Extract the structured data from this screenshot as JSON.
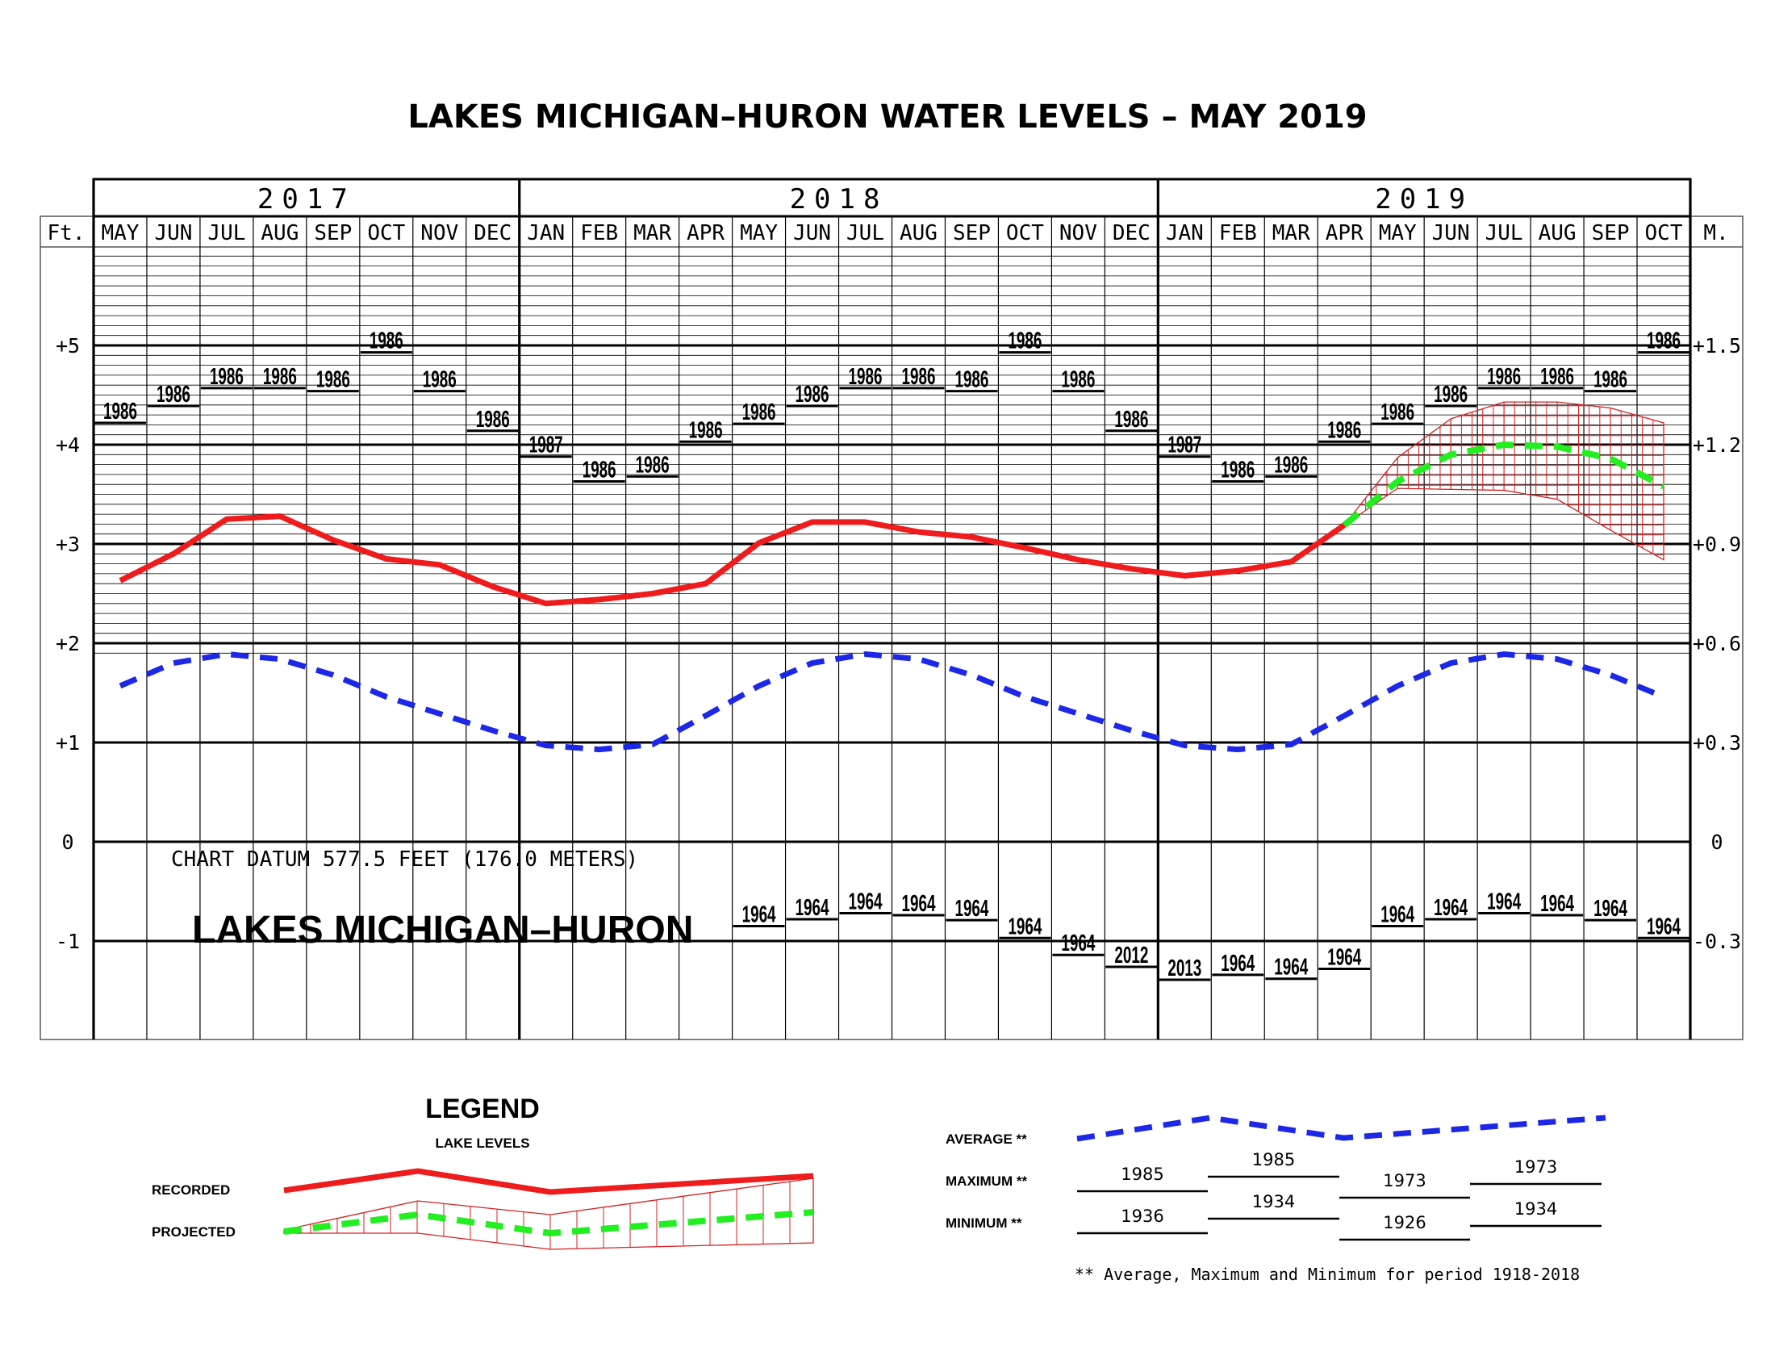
{
  "title": "LAKES MICHIGAN–HURON  WATER  LEVELS  –  MAY  2019",
  "years": [
    {
      "label": "2017",
      "first": 0,
      "last": 7
    },
    {
      "label": "2018",
      "first": 8,
      "last": 19
    },
    {
      "label": "2019",
      "first": 20,
      "last": 29
    }
  ],
  "months": [
    "MAY",
    "JUN",
    "JUL",
    "AUG",
    "SEP",
    "OCT",
    "NOV",
    "DEC",
    "JAN",
    "FEB",
    "MAR",
    "APR",
    "MAY",
    "JUN",
    "JUL",
    "AUG",
    "SEP",
    "OCT",
    "NOV",
    "DEC",
    "JAN",
    "FEB",
    "MAR",
    "APR",
    "MAY",
    "JUN",
    "JUL",
    "AUG",
    "SEP",
    "OCT"
  ],
  "axis": {
    "left_unit": "Ft.",
    "right_unit": "M.",
    "feet_ticks": [
      {
        "v": 5,
        "l": "+5"
      },
      {
        "v": 4,
        "l": "+4"
      },
      {
        "v": 3,
        "l": "+3"
      },
      {
        "v": 2,
        "l": "+2"
      },
      {
        "v": 1,
        "l": "+1"
      },
      {
        "v": 0,
        "l": "0"
      },
      {
        "v": -1,
        "l": "-1"
      }
    ],
    "meter_ticks": [
      {
        "v": 5,
        "l": "+1.5"
      },
      {
        "v": 4,
        "l": "+1.2"
      },
      {
        "v": 3,
        "l": "+0.9"
      },
      {
        "v": 2,
        "l": "+0.6"
      },
      {
        "v": 1,
        "l": "+0.3"
      },
      {
        "v": 0,
        "l": "0"
      },
      {
        "v": -1,
        "l": "-0.3"
      }
    ]
  },
  "datum_text": "CHART DATUM   577.5 FEET (176.0 METERS)",
  "lake_label": "LAKES MICHIGAN–HURON",
  "chart_data": {
    "type": "line",
    "title": "LAKES MICHIGAN–HURON  WATER  LEVELS  –  MAY  2019",
    "xlabel": "",
    "ylabel": "Ft.",
    "ylim": [
      -2.0,
      6.2
    ],
    "x": [
      "MAY 2017",
      "JUN 2017",
      "JUL 2017",
      "AUG 2017",
      "SEP 2017",
      "OCT 2017",
      "NOV 2017",
      "DEC 2017",
      "JAN 2018",
      "FEB 2018",
      "MAR 2018",
      "APR 2018",
      "MAY 2018",
      "JUN 2018",
      "JUL 2018",
      "AUG 2018",
      "SEP 2018",
      "OCT 2018",
      "NOV 2018",
      "DEC 2018",
      "JAN 2019",
      "FEB 2019",
      "MAR 2019",
      "APR 2019",
      "MAY 2019",
      "JUN 2019",
      "JUL 2019",
      "AUG 2019",
      "SEP 2019",
      "OCT 2019"
    ],
    "recorded": [
      2.63,
      2.9,
      3.25,
      3.28,
      3.04,
      2.85,
      2.79,
      2.57,
      2.4,
      2.44,
      2.5,
      2.6,
      3.01,
      3.22,
      3.22,
      3.12,
      3.07,
      2.96,
      2.84,
      2.75,
      2.68,
      2.73,
      2.82,
      3.19,
      null,
      null,
      null,
      null,
      null,
      null
    ],
    "average": [
      1.57,
      1.8,
      1.89,
      1.84,
      1.68,
      1.46,
      1.29,
      1.12,
      0.97,
      0.93,
      0.98,
      1.27,
      1.57,
      1.8,
      1.89,
      1.84,
      1.68,
      1.46,
      1.29,
      1.12,
      0.97,
      0.93,
      0.98,
      1.27,
      1.57,
      1.8,
      1.89,
      1.84,
      1.68,
      1.46
    ],
    "projected": [
      null,
      null,
      null,
      null,
      null,
      null,
      null,
      null,
      null,
      null,
      null,
      null,
      null,
      null,
      null,
      null,
      null,
      null,
      null,
      null,
      null,
      null,
      null,
      3.19,
      3.63,
      3.9,
      4.0,
      3.98,
      3.86,
      3.58
    ],
    "projected_high": [
      null,
      null,
      null,
      null,
      null,
      null,
      null,
      null,
      null,
      null,
      null,
      null,
      null,
      null,
      null,
      null,
      null,
      null,
      null,
      null,
      null,
      null,
      null,
      3.19,
      3.87,
      4.26,
      4.43,
      4.43,
      4.37,
      4.22
    ],
    "projected_low": [
      null,
      null,
      null,
      null,
      null,
      null,
      null,
      null,
      null,
      null,
      null,
      null,
      null,
      null,
      null,
      null,
      null,
      null,
      null,
      null,
      null,
      null,
      null,
      3.19,
      3.56,
      3.55,
      3.54,
      3.45,
      3.14,
      2.84
    ],
    "record_high": [
      {
        "v": 4.22,
        "y": "1986"
      },
      {
        "v": 4.39,
        "y": "1986"
      },
      {
        "v": 4.57,
        "y": "1986"
      },
      {
        "v": 4.57,
        "y": "1986"
      },
      {
        "v": 4.54,
        "y": "1986"
      },
      {
        "v": 4.93,
        "y": "1986"
      },
      {
        "v": 4.54,
        "y": "1986"
      },
      {
        "v": 4.14,
        "y": "1986"
      },
      {
        "v": 3.88,
        "y": "1987"
      },
      {
        "v": 3.63,
        "y": "1986"
      },
      {
        "v": 3.68,
        "y": "1986"
      },
      {
        "v": 4.03,
        "y": "1986"
      },
      {
        "v": 4.21,
        "y": "1986"
      },
      {
        "v": 4.39,
        "y": "1986"
      },
      {
        "v": 4.57,
        "y": "1986"
      },
      {
        "v": 4.57,
        "y": "1986"
      },
      {
        "v": 4.54,
        "y": "1986"
      },
      {
        "v": 4.93,
        "y": "1986"
      },
      {
        "v": 4.54,
        "y": "1986"
      },
      {
        "v": 4.14,
        "y": "1986"
      },
      {
        "v": 3.88,
        "y": "1987"
      },
      {
        "v": 3.63,
        "y": "1986"
      },
      {
        "v": 3.68,
        "y": "1986"
      },
      {
        "v": 4.03,
        "y": "1986"
      },
      {
        "v": 4.21,
        "y": "1986"
      },
      {
        "v": 4.39,
        "y": "1986"
      },
      {
        "v": 4.57,
        "y": "1986"
      },
      {
        "v": 4.57,
        "y": "1986"
      },
      {
        "v": 4.54,
        "y": "1986"
      },
      {
        "v": 4.93,
        "y": "1986"
      }
    ],
    "record_low": [
      null,
      null,
      null,
      null,
      null,
      null,
      null,
      null,
      null,
      null,
      null,
      null,
      {
        "v": -0.85,
        "y": "1964"
      },
      {
        "v": -0.78,
        "y": "1964"
      },
      {
        "v": -0.72,
        "y": "1964"
      },
      {
        "v": -0.74,
        "y": "1964"
      },
      {
        "v": -0.79,
        "y": "1964"
      },
      {
        "v": -0.97,
        "y": "1964"
      },
      {
        "v": -1.14,
        "y": "1964"
      },
      {
        "v": -1.26,
        "y": "2012"
      },
      {
        "v": -1.39,
        "y": "2013"
      },
      {
        "v": -1.34,
        "y": "1964"
      },
      {
        "v": -1.38,
        "y": "1964"
      },
      {
        "v": -1.28,
        "y": "1964"
      },
      {
        "v": -0.85,
        "y": "1964"
      },
      {
        "v": -0.78,
        "y": "1964"
      },
      {
        "v": -0.72,
        "y": "1964"
      },
      {
        "v": -0.74,
        "y": "1964"
      },
      {
        "v": -0.79,
        "y": "1964"
      },
      {
        "v": -0.97,
        "y": "1964"
      }
    ],
    "colors": {
      "recorded": "#ee1c1c",
      "projected": "#22ee22",
      "average": "#1c28e6",
      "projected_band": "#d42020"
    }
  },
  "legend": {
    "heading": "LEGEND",
    "subheading": "LAKE LEVELS",
    "recorded": "RECORDED",
    "projected": "PROJECTED",
    "average": "AVERAGE **",
    "maximum": "MAXIMUM **",
    "minimum": "MINIMUM **",
    "max_years": [
      "1985",
      "1985",
      "1973",
      "1973"
    ],
    "min_years": [
      "1936",
      "1934",
      "1926",
      "1934"
    ],
    "footnote": "** Average, Maximum and Minimum for period 1918-2018"
  }
}
